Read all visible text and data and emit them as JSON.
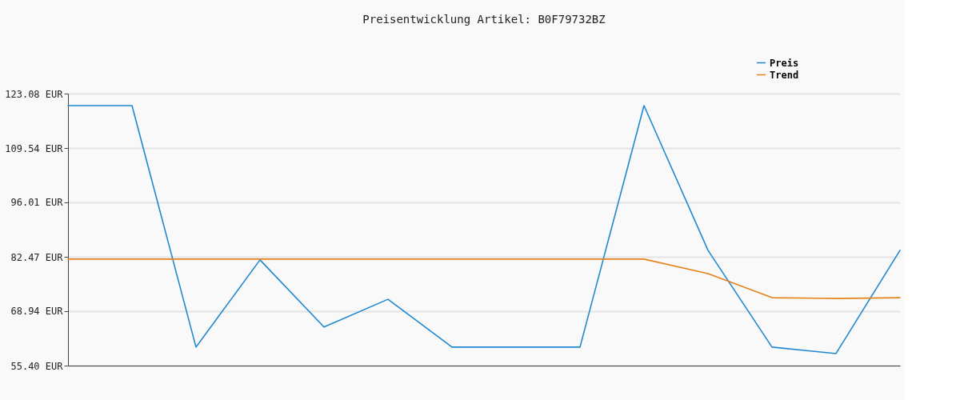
{
  "chart_data": {
    "type": "line",
    "title": "Preisentwicklung Artikel: B0F79732BZ",
    "categories": [
      null,
      null,
      null,
      null,
      null,
      null,
      null,
      null,
      null,
      null,
      null,
      null,
      null,
      null
    ],
    "series": [
      {
        "name": "Preis",
        "color": "#1f88d0",
        "values": [
          120.1,
          120.1,
          60.0,
          81.7,
          65.0,
          71.9,
          60.0,
          60.0,
          60.0,
          120.1,
          84.1,
          60.0,
          58.4,
          84.1
        ]
      },
      {
        "name": "Trend",
        "color": "#e5821b",
        "marker": "none",
        "values": [
          81.9,
          81.9,
          81.9,
          81.9,
          81.9,
          81.9,
          81.9,
          81.9,
          81.9,
          81.9,
          78.3,
          72.3,
          72.1,
          72.3
        ]
      }
    ],
    "ylim": [
      55.4,
      123.08
    ],
    "yticks": [
      {
        "value": 55.4,
        "label": "55.40 EUR"
      },
      {
        "value": 68.94,
        "label": "68.94 EUR"
      },
      {
        "value": 82.47,
        "label": "82.47 EUR"
      },
      {
        "value": 96.01,
        "label": "96.01 EUR"
      },
      {
        "value": 109.54,
        "label": "109.54 EUR"
      },
      {
        "value": 123.08,
        "label": "123.08 EUR"
      }
    ],
    "grid": "y",
    "legend": "top right",
    "tick_labels": "y"
  }
}
